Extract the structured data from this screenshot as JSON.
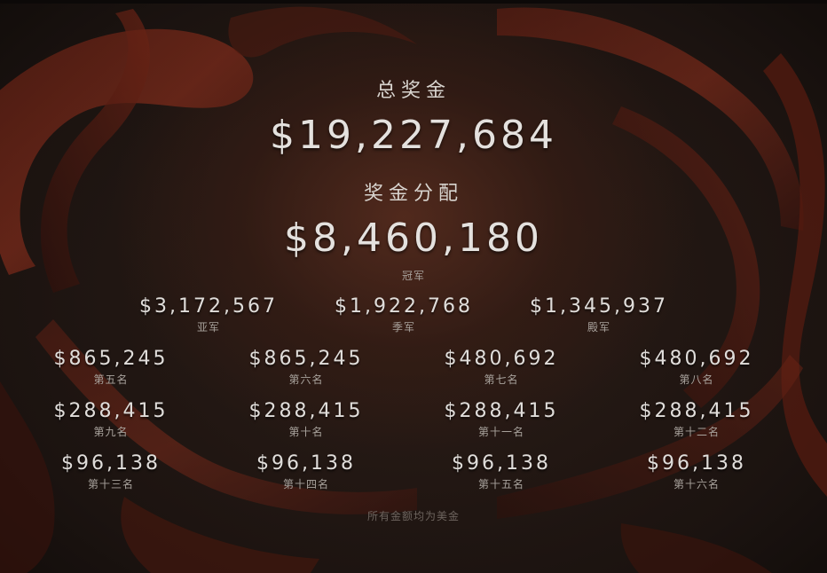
{
  "total": {
    "label": "总奖金",
    "amount": "$19,227,684"
  },
  "distribution": {
    "label": "奖金分配",
    "amount": "$8,460,180",
    "place": "冠军"
  },
  "row1": [
    {
      "amount": "$3,172,567",
      "place": "亚军"
    },
    {
      "amount": "$1,922,768",
      "place": "季军"
    },
    {
      "amount": "$1,345,937",
      "place": "殿军"
    }
  ],
  "row2": [
    {
      "amount": "$865,245",
      "place": "第五名"
    },
    {
      "amount": "$865,245",
      "place": "第六名"
    },
    {
      "amount": "$480,692",
      "place": "第七名"
    },
    {
      "amount": "$480,692",
      "place": "第八名"
    }
  ],
  "row3": [
    {
      "amount": "$288,415",
      "place": "第九名"
    },
    {
      "amount": "$288,415",
      "place": "第十名"
    },
    {
      "amount": "$288,415",
      "place": "第十一名"
    },
    {
      "amount": "$288,415",
      "place": "第十二名"
    }
  ],
  "row4": [
    {
      "amount": "$96,138",
      "place": "第十三名"
    },
    {
      "amount": "$96,138",
      "place": "第十四名"
    },
    {
      "amount": "$96,138",
      "place": "第十五名"
    },
    {
      "amount": "$96,138",
      "place": "第十六名"
    }
  ],
  "footer": "所有金额均为美金"
}
